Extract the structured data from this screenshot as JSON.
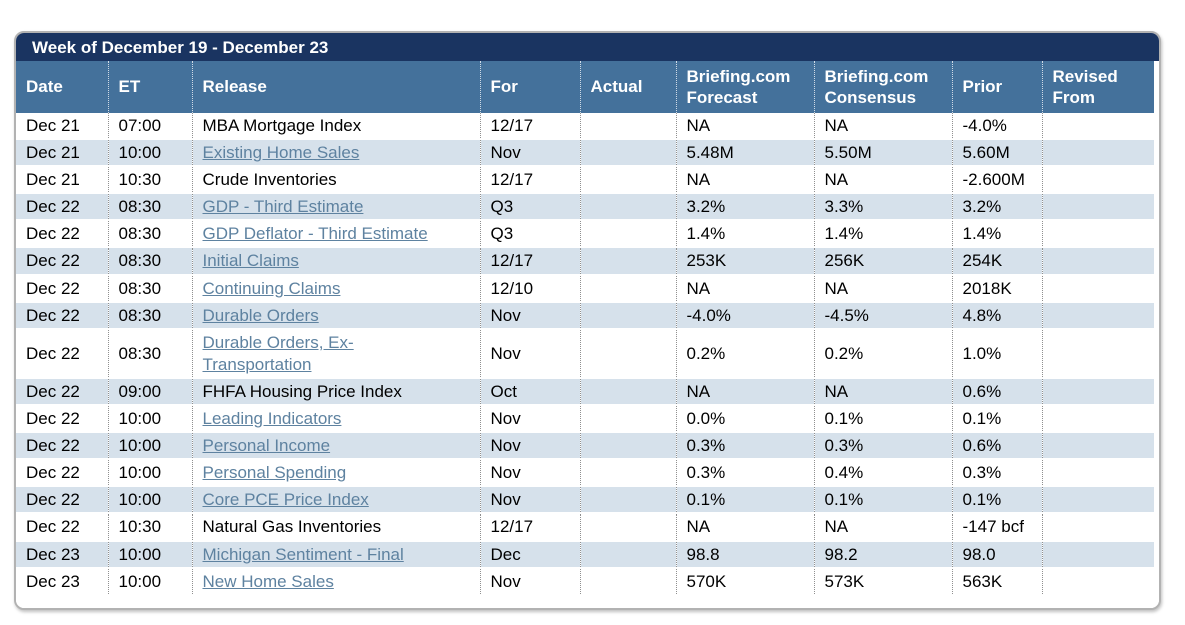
{
  "panel": {
    "title": "Week of December 19 - December 23"
  },
  "colors": {
    "navy": "#1a3461",
    "header": "#44719b",
    "rowalt": "#d6e1eb",
    "link": "#5e82a0",
    "panelborder": "#b2b2b2"
  },
  "table": {
    "columns": [
      {
        "key": "date",
        "label": "Date"
      },
      {
        "key": "et",
        "label": "ET"
      },
      {
        "key": "release",
        "label": "Release"
      },
      {
        "key": "for",
        "label": "For"
      },
      {
        "key": "actual",
        "label": "Actual"
      },
      {
        "key": "forecast",
        "label": "Briefing.com Forecast"
      },
      {
        "key": "consensus",
        "label": "Briefing.com Consensus"
      },
      {
        "key": "prior",
        "label": "Prior"
      },
      {
        "key": "revised",
        "label": "Revised From"
      }
    ],
    "rows": [
      {
        "date": "Dec 21",
        "et": "07:00",
        "release": "MBA Mortgage Index",
        "link": false,
        "for": "12/17",
        "actual": "",
        "forecast": "NA",
        "consensus": "NA",
        "prior": "-4.0%",
        "revised": ""
      },
      {
        "date": "Dec 21",
        "et": "10:00",
        "release": "Existing Home Sales",
        "link": true,
        "for": "Nov",
        "actual": "",
        "forecast": "5.48M",
        "consensus": "5.50M",
        "prior": "5.60M",
        "revised": ""
      },
      {
        "date": "Dec 21",
        "et": "10:30",
        "release": "Crude Inventories",
        "link": false,
        "for": "12/17",
        "actual": "",
        "forecast": "NA",
        "consensus": "NA",
        "prior": "-2.600M",
        "revised": ""
      },
      {
        "date": "Dec 22",
        "et": "08:30",
        "release": "GDP - Third Estimate",
        "link": true,
        "for": "Q3",
        "actual": "",
        "forecast": "3.2%",
        "consensus": "3.3%",
        "prior": "3.2%",
        "revised": ""
      },
      {
        "date": "Dec 22",
        "et": "08:30",
        "release": "GDP Deflator - Third Estimate",
        "link": true,
        "for": "Q3",
        "actual": "",
        "forecast": "1.4%",
        "consensus": "1.4%",
        "prior": "1.4%",
        "revised": ""
      },
      {
        "date": "Dec 22",
        "et": "08:30",
        "release": "Initial Claims",
        "link": true,
        "for": "12/17",
        "actual": "",
        "forecast": "253K",
        "consensus": "256K",
        "prior": "254K",
        "revised": ""
      },
      {
        "date": "Dec 22",
        "et": "08:30",
        "release": "Continuing Claims",
        "link": true,
        "for": "12/10",
        "actual": "",
        "forecast": "NA",
        "consensus": "NA",
        "prior": "2018K",
        "revised": ""
      },
      {
        "date": "Dec 22",
        "et": "08:30",
        "release": "Durable Orders",
        "link": true,
        "for": "Nov",
        "actual": "",
        "forecast": "-4.0%",
        "consensus": "-4.5%",
        "prior": "4.8%",
        "revised": ""
      },
      {
        "date": "Dec 22",
        "et": "08:30",
        "release": "Durable Orders, Ex-Transportation",
        "link": true,
        "for": "Nov",
        "actual": "",
        "forecast": "0.2%",
        "consensus": "0.2%",
        "prior": "1.0%",
        "revised": ""
      },
      {
        "date": "Dec 22",
        "et": "09:00",
        "release": "FHFA Housing Price Index",
        "link": false,
        "for": "Oct",
        "actual": "",
        "forecast": "NA",
        "consensus": "NA",
        "prior": "0.6%",
        "revised": ""
      },
      {
        "date": "Dec 22",
        "et": "10:00",
        "release": "Leading Indicators",
        "link": true,
        "for": "Nov",
        "actual": "",
        "forecast": "0.0%",
        "consensus": "0.1%",
        "prior": "0.1%",
        "revised": ""
      },
      {
        "date": "Dec 22",
        "et": "10:00",
        "release": "Personal Income",
        "link": true,
        "for": "Nov",
        "actual": "",
        "forecast": "0.3%",
        "consensus": "0.3%",
        "prior": "0.6%",
        "revised": ""
      },
      {
        "date": "Dec 22",
        "et": "10:00",
        "release": "Personal Spending",
        "link": true,
        "for": "Nov",
        "actual": "",
        "forecast": "0.3%",
        "consensus": "0.4%",
        "prior": "0.3%",
        "revised": ""
      },
      {
        "date": "Dec 22",
        "et": "10:00",
        "release": "Core PCE Price Index",
        "link": true,
        "for": "Nov",
        "actual": "",
        "forecast": "0.1%",
        "consensus": "0.1%",
        "prior": "0.1%",
        "revised": ""
      },
      {
        "date": "Dec 22",
        "et": "10:30",
        "release": "Natural Gas Inventories",
        "link": false,
        "for": "12/17",
        "actual": "",
        "forecast": "NA",
        "consensus": "NA",
        "prior": "-147 bcf",
        "revised": ""
      },
      {
        "date": "Dec 23",
        "et": "10:00",
        "release": "Michigan Sentiment - Final",
        "link": true,
        "for": "Dec",
        "actual": "",
        "forecast": "98.8",
        "consensus": "98.2",
        "prior": "98.0",
        "revised": ""
      },
      {
        "date": "Dec 23",
        "et": "10:00",
        "release": "New Home Sales",
        "link": true,
        "for": "Nov",
        "actual": "",
        "forecast": "570K",
        "consensus": "573K",
        "prior": "563K",
        "revised": ""
      }
    ]
  }
}
